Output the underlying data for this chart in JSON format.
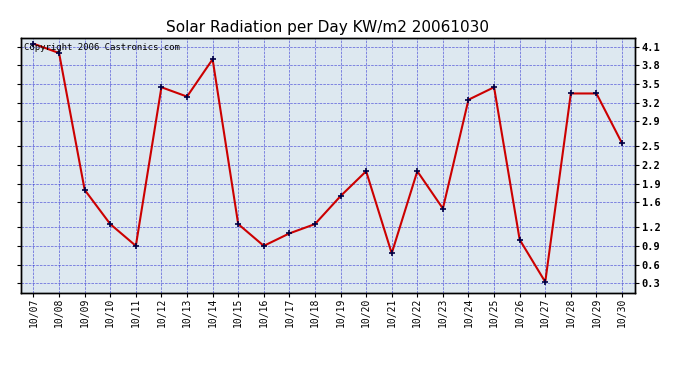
{
  "title": "Solar Radiation per Day KW/m2 20061030",
  "copyright_text": "Copyright 2006 Castronics.com",
  "dates": [
    "10/07",
    "10/08",
    "10/09",
    "10/10",
    "10/11",
    "10/12",
    "10/13",
    "10/14",
    "10/15",
    "10/16",
    "10/17",
    "10/18",
    "10/19",
    "10/20",
    "10/21",
    "10/22",
    "10/23",
    "10/24",
    "10/25",
    "10/26",
    "10/27",
    "10/28",
    "10/29",
    "10/30"
  ],
  "values": [
    4.15,
    4.0,
    1.8,
    1.25,
    0.9,
    3.45,
    3.3,
    3.9,
    1.25,
    0.9,
    1.1,
    1.25,
    1.7,
    2.1,
    0.78,
    2.1,
    1.5,
    3.25,
    3.45,
    1.0,
    0.32,
    3.35,
    3.35,
    2.55
  ],
  "y_ticks": [
    0.3,
    0.6,
    0.9,
    1.2,
    1.6,
    1.9,
    2.2,
    2.5,
    2.9,
    3.2,
    3.5,
    3.8,
    4.1
  ],
  "ylim": [
    0.15,
    4.25
  ],
  "line_color": "#cc0000",
  "marker_color": "#cc0000",
  "bg_color": "#dde8f0",
  "grid_color": "#0000cc",
  "title_fontsize": 11,
  "copyright_fontsize": 6.5,
  "tick_fontsize": 7,
  "ytick_fontsize": 7.5
}
